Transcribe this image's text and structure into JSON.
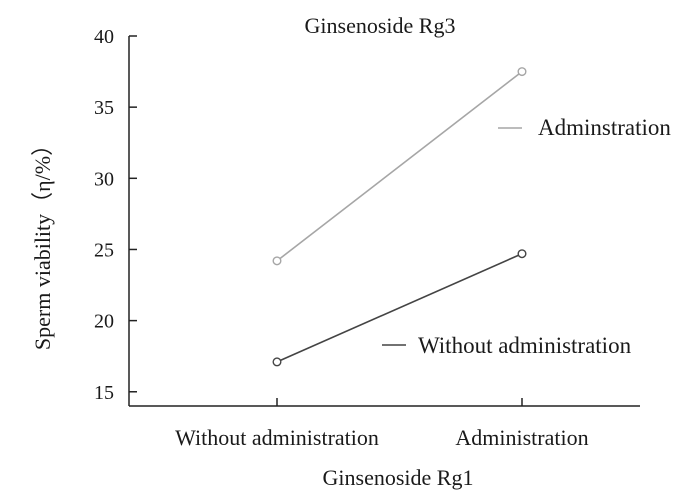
{
  "chart_data": {
    "type": "line",
    "title": "Ginsenoside Rg3",
    "xlabel": "Ginsenoside  Rg1",
    "ylabel": "Sperm viability（η/%）",
    "categories": [
      "Without administration",
      "Administration"
    ],
    "ylim": [
      14,
      40
    ],
    "yticks": [
      15,
      20,
      25,
      30,
      35,
      40
    ],
    "grid": false,
    "series": [
      {
        "name": "Adminstration",
        "values": [
          24.2,
          37.5
        ],
        "color": "#a6a6a6"
      },
      {
        "name": "Without administration",
        "values": [
          17.1,
          24.7
        ],
        "color": "#444444"
      }
    ]
  }
}
